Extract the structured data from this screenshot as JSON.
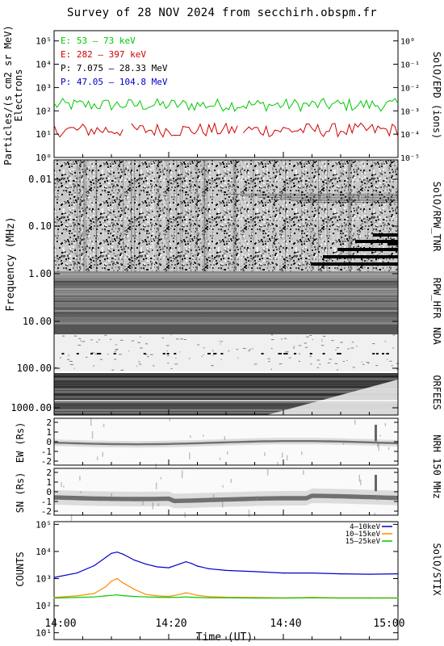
{
  "title": "Survey of 28 NOV 2024 from secchirh.obspm.fr",
  "xaxis": {
    "label": "Time (UT)",
    "ticks": [
      "14:00",
      "14:20",
      "14:40",
      "15:00"
    ],
    "range_minutes": [
      0,
      60
    ]
  },
  "panels": {
    "epd": {
      "ylabel_left_1": "Particles/(s cm2 sr MeV)",
      "ylabel_left_2": "Electrons",
      "right_label": "SolO/EPD (ions)",
      "left_ticks": [
        "10⁰",
        "10¹",
        "10²",
        "10³",
        "10⁴",
        "10⁵"
      ],
      "right_ticks": [
        "10⁻⁵",
        "10⁻⁴",
        "10⁻³",
        "10⁻²",
        "10⁻¹",
        "10⁰"
      ],
      "legend": [
        {
          "text": "E: 53 – 73 keV",
          "color": "#00c800"
        },
        {
          "text": "E: 282 – 397 keV",
          "color": "#d00000"
        },
        {
          "text": "P: 7.075 – 28.33 MeV",
          "color": "#000000"
        },
        {
          "text": "P: 47.05 – 104.8 MeV",
          "color": "#0000c8"
        }
      ]
    },
    "spectrum": {
      "ylabel": "Frequency (MHz)",
      "ticks": [
        "0.01",
        "0.10",
        "1.00",
        "10.00",
        "100.00",
        "1000.00"
      ],
      "instrument_labels": [
        "SolO/RPW_TNR",
        "RPW_HFR",
        "NDA",
        "ORFEES"
      ]
    },
    "nrh_ew": {
      "ylabel": "EW (Rs)",
      "ticks": [
        "2",
        "1",
        "0",
        "-1",
        "-2"
      ]
    },
    "nrh_sn": {
      "ylabel": "SN (Rs)",
      "ticks": [
        "2",
        "1",
        "0",
        "-1",
        "-2"
      ]
    },
    "nrh_label": "NRH 150 MHz",
    "stix": {
      "ylabel": "COUNTS",
      "right_label": "SolO/STIX",
      "ticks": [
        "10¹",
        "10²",
        "10³",
        "10⁴",
        "10⁵"
      ]
    }
  },
  "chart_data": [
    {
      "type": "line",
      "title": "",
      "xlabel": "Time (UT)",
      "ylabel": "Particles/(s cm2 sr MeV) Electrons",
      "y_scale": "log",
      "ylim": [
        1,
        100000
      ],
      "x_range": [
        "14:00",
        "15:00"
      ],
      "series": [
        {
          "name": "E: 53 – 73 keV",
          "color": "#00c800",
          "approx_level": 180,
          "approx_range": [
            90,
            350
          ]
        },
        {
          "name": "E: 282 – 397 keV",
          "color": "#d00000",
          "approx_level": 15,
          "approx_range": [
            5,
            30
          ]
        }
      ]
    },
    {
      "type": "line",
      "title": "",
      "xlabel": "Time (UT)",
      "ylabel": "COUNTS",
      "y_scale": "log",
      "ylim": [
        10,
        100000
      ],
      "x": [
        0,
        4,
        7,
        9,
        10,
        11,
        12,
        14,
        16,
        18,
        20,
        22,
        23,
        24,
        25,
        27,
        30,
        35,
        40,
        45,
        50,
        55,
        60
      ],
      "series": [
        {
          "name": "4–10keV",
          "color": "#0000c8",
          "values": [
            1100,
            1600,
            3000,
            6000,
            8500,
            9500,
            8000,
            4800,
            3400,
            2700,
            2500,
            3500,
            4200,
            3600,
            2900,
            2300,
            2000,
            1800,
            1600,
            1600,
            1500,
            1450,
            1500
          ]
        },
        {
          "name": "10–15keV",
          "color": "#ff8c00",
          "values": [
            200,
            230,
            280,
            500,
            800,
            1000,
            700,
            400,
            260,
            230,
            220,
            260,
            300,
            270,
            240,
            215,
            205,
            200,
            195,
            200,
            195,
            195,
            195
          ]
        },
        {
          "name": "15–25keV",
          "color": "#00c800",
          "values": [
            190,
            200,
            210,
            230,
            240,
            250,
            235,
            220,
            210,
            205,
            200,
            205,
            210,
            205,
            200,
            195,
            195,
            190,
            190,
            195,
            190,
            190,
            190
          ]
        }
      ]
    }
  ]
}
